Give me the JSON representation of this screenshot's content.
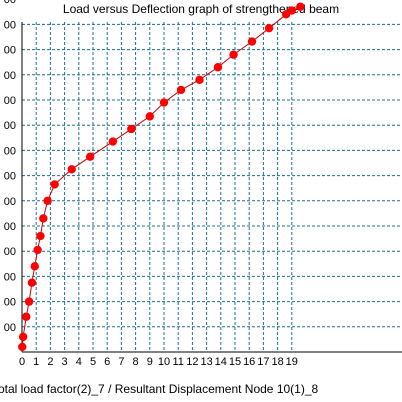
{
  "chart_data": {
    "type": "line",
    "title": "Load versus Deflection graph of strengthened beam",
    "xlabel": "otal load factor(2)_7 / Resultant Displacement Node 10(1)_8",
    "ylabel": "",
    "xlim": [
      0,
      20
    ],
    "ylim": [
      0,
      1400
    ],
    "grid": true,
    "x_ticks": [
      0,
      1,
      2,
      3,
      4,
      5,
      6,
      7,
      8,
      9,
      10,
      11,
      12,
      13,
      14,
      15,
      16,
      17,
      18,
      19
    ],
    "y_tick_labels": [
      "00",
      "00",
      "00",
      "00",
      "00",
      "00",
      "00",
      "00",
      "00",
      "00",
      "00",
      "00",
      "00",
      "00"
    ],
    "series": [
      {
        "color": "#ff0000",
        "x": [
          0.02,
          0.08,
          0.3,
          0.5,
          0.7,
          0.9,
          1.1,
          1.3,
          1.5,
          1.8,
          2.3,
          3.5,
          4.8,
          6.4,
          7.7,
          9.0,
          10.0,
          11.2,
          12.5,
          13.8,
          14.9,
          16.2,
          17.4,
          18.6,
          19.0,
          19.6
        ],
        "y": [
          20,
          60,
          140,
          200,
          275,
          340,
          405,
          460,
          530,
          600,
          665,
          725,
          775,
          835,
          885,
          935,
          990,
          1040,
          1080,
          1130,
          1180,
          1232,
          1285,
          1340,
          1355,
          1370
        ]
      }
    ]
  }
}
